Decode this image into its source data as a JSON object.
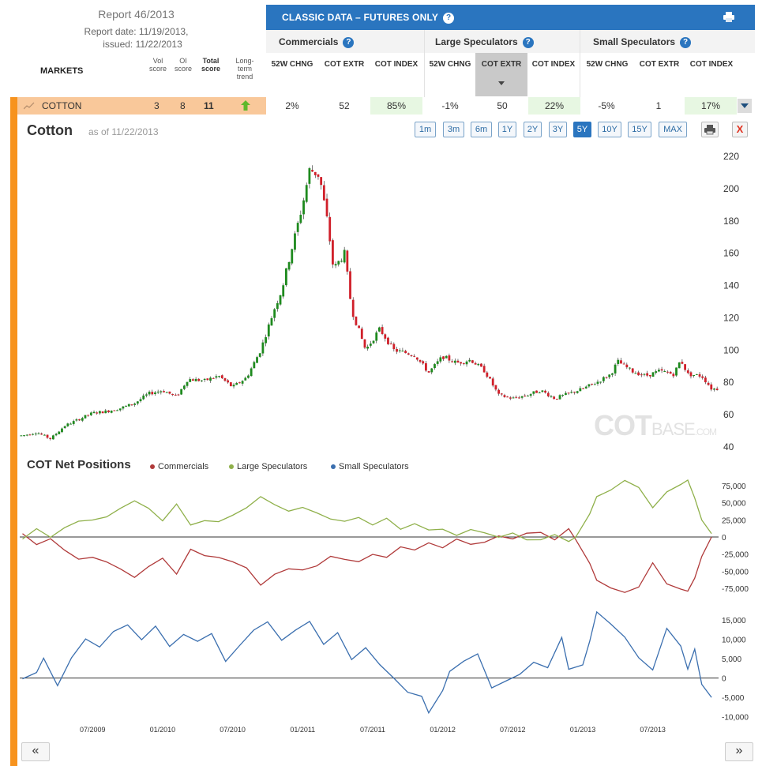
{
  "report": {
    "title": "Report 46/2013",
    "date_line": "Report date: 11/19/2013,",
    "issued_line": "issued: 11/22/2013"
  },
  "table": {
    "markets_label": "MARKETS",
    "vol_label": "Vol score",
    "oi_label": "OI score",
    "total_label": "Total score",
    "trend_label": "Long-term trend",
    "classic_title": "CLASSIC DATA – FUTURES ONLY",
    "groups": [
      "Commercials",
      "Large Speculators",
      "Small Speculators"
    ],
    "sub_headers": [
      "52W CHNG",
      "COT EXTR",
      "COT INDEX",
      "52W CHNG",
      "COT EXTR",
      "COT INDEX",
      "52W CHNG",
      "COT EXTR",
      "COT INDEX"
    ],
    "row": {
      "market": "COTTON",
      "vol": "3",
      "oi": "8",
      "total": "11",
      "values": [
        "2%",
        "52",
        "85%",
        "-1%",
        "50",
        "22%",
        "-5%",
        "1",
        "17%"
      ]
    }
  },
  "chart": {
    "title": "Cotton",
    "as_of": "as of 11/22/2013",
    "ranges": [
      "1m",
      "3m",
      "6m",
      "1Y",
      "2Y",
      "3Y",
      "5Y",
      "10Y",
      "15Y",
      "MAX"
    ],
    "active_range": "5Y",
    "close_label": "X",
    "watermark": {
      "a": "COT",
      "b": "BASE",
      "c": ".COM"
    },
    "cot_title": "COT Net Positions",
    "nav_prev": "«",
    "nav_next": "»"
  },
  "colors": {
    "up": "#1e8a1e",
    "down": "#d0202a",
    "commercials": "#b03a3a",
    "large": "#8fb04a",
    "small": "#3b6faf",
    "accent": "#2a75bf",
    "orange": "#f7931e"
  },
  "chart_data": [
    {
      "type": "candlestick",
      "title": "Cotton",
      "x_ticks": [
        "07/2009",
        "01/2010",
        "07/2010",
        "01/2011",
        "07/2011",
        "01/2012",
        "07/2012",
        "01/2013",
        "07/2013"
      ],
      "y_ticks": [
        40,
        60,
        80,
        100,
        120,
        140,
        160,
        180,
        200,
        220
      ],
      "ylim": [
        37,
        222
      ],
      "points": [
        [
          2009.0,
          47
        ],
        [
          2009.1,
          49
        ],
        [
          2009.2,
          45
        ],
        [
          2009.3,
          53
        ],
        [
          2009.4,
          57
        ],
        [
          2009.5,
          61
        ],
        [
          2009.6,
          62
        ],
        [
          2009.7,
          64
        ],
        [
          2009.8,
          67
        ],
        [
          2009.9,
          73
        ],
        [
          2010.0,
          75
        ],
        [
          2010.1,
          71
        ],
        [
          2010.18,
          82
        ],
        [
          2010.3,
          81
        ],
        [
          2010.4,
          84
        ],
        [
          2010.5,
          77
        ],
        [
          2010.6,
          83
        ],
        [
          2010.7,
          100
        ],
        [
          2010.8,
          126
        ],
        [
          2010.85,
          137
        ],
        [
          2010.9,
          155
        ],
        [
          2011.0,
          190
        ],
        [
          2011.05,
          212
        ],
        [
          2011.12,
          208
        ],
        [
          2011.18,
          178
        ],
        [
          2011.22,
          150
        ],
        [
          2011.3,
          160
        ],
        [
          2011.35,
          125
        ],
        [
          2011.45,
          100
        ],
        [
          2011.55,
          113
        ],
        [
          2011.65,
          100
        ],
        [
          2011.8,
          97
        ],
        [
          2011.9,
          86
        ],
        [
          2012.0,
          96
        ],
        [
          2012.1,
          92
        ],
        [
          2012.2,
          94
        ],
        [
          2012.3,
          87
        ],
        [
          2012.4,
          72
        ],
        [
          2012.5,
          70
        ],
        [
          2012.6,
          72
        ],
        [
          2012.7,
          75
        ],
        [
          2012.8,
          70
        ],
        [
          2012.9,
          73
        ],
        [
          2013.0,
          76
        ],
        [
          2013.1,
          80
        ],
        [
          2013.2,
          85
        ],
        [
          2013.25,
          93
        ],
        [
          2013.35,
          87
        ],
        [
          2013.45,
          84
        ],
        [
          2013.55,
          87
        ],
        [
          2013.65,
          85
        ],
        [
          2013.7,
          94
        ],
        [
          2013.75,
          85
        ],
        [
          2013.85,
          84
        ],
        [
          2013.92,
          76
        ]
      ]
    },
    {
      "type": "line",
      "title": "COT Net Positions",
      "y_ticks": [
        -75000,
        -50000,
        -25000,
        0,
        25000,
        50000,
        75000
      ],
      "ylim": [
        -90000,
        90000
      ],
      "series": [
        {
          "name": "Commercials",
          "values": [
            [
              2009.0,
              5000
            ],
            [
              2009.1,
              -12000
            ],
            [
              2009.2,
              -5000
            ],
            [
              2009.3,
              -18000
            ],
            [
              2009.4,
              -30000
            ],
            [
              2009.5,
              -28000
            ],
            [
              2009.6,
              -38000
            ],
            [
              2009.7,
              -45000
            ],
            [
              2009.8,
              -58000
            ],
            [
              2009.9,
              -45000
            ],
            [
              2010.0,
              -30000
            ],
            [
              2010.1,
              -55000
            ],
            [
              2010.2,
              -20000
            ],
            [
              2010.3,
              -30000
            ],
            [
              2010.4,
              -30000
            ],
            [
              2010.5,
              -35000
            ],
            [
              2010.6,
              -45000
            ],
            [
              2010.7,
              -70000
            ],
            [
              2010.8,
              -55000
            ],
            [
              2010.9,
              -45000
            ],
            [
              2011.0,
              -50000
            ],
            [
              2011.1,
              -40000
            ],
            [
              2011.2,
              -30000
            ],
            [
              2011.3,
              -30000
            ],
            [
              2011.4,
              -35000
            ],
            [
              2011.5,
              -25000
            ],
            [
              2011.6,
              -30000
            ],
            [
              2011.7,
              -15000
            ],
            [
              2011.8,
              -20000
            ],
            [
              2011.9,
              -10000
            ],
            [
              2012.0,
              -15000
            ],
            [
              2012.1,
              -5000
            ],
            [
              2012.2,
              -8000
            ],
            [
              2012.3,
              -5000
            ],
            [
              2012.4,
              2000
            ],
            [
              2012.5,
              -5000
            ],
            [
              2012.6,
              8000
            ],
            [
              2012.7,
              5000
            ],
            [
              2012.8,
              -5000
            ],
            [
              2012.9,
              10000
            ],
            [
              2012.95,
              -3000
            ],
            [
              2013.05,
              -40000
            ],
            [
              2013.1,
              -65000
            ],
            [
              2013.2,
              -75000
            ],
            [
              2013.3,
              -82000
            ],
            [
              2013.4,
              -72000
            ],
            [
              2013.5,
              -40000
            ],
            [
              2013.6,
              -70000
            ],
            [
              2013.7,
              -78000
            ],
            [
              2013.75,
              -80000
            ],
            [
              2013.8,
              -60000
            ],
            [
              2013.85,
              -30000
            ],
            [
              2013.92,
              0
            ]
          ]
        },
        {
          "name": "Large Speculators",
          "values": [
            [
              2009.0,
              -3000
            ],
            [
              2009.1,
              10000
            ],
            [
              2009.2,
              2000
            ],
            [
              2009.3,
              15000
            ],
            [
              2009.4,
              25000
            ],
            [
              2009.5,
              22000
            ],
            [
              2009.6,
              32000
            ],
            [
              2009.7,
              40000
            ],
            [
              2009.8,
              52000
            ],
            [
              2009.9,
              40000
            ],
            [
              2010.0,
              25000
            ],
            [
              2010.1,
              48000
            ],
            [
              2010.2,
              15000
            ],
            [
              2010.3,
              22000
            ],
            [
              2010.4,
              25000
            ],
            [
              2010.5,
              30000
            ],
            [
              2010.6,
              40000
            ],
            [
              2010.7,
              58000
            ],
            [
              2010.8,
              45000
            ],
            [
              2010.9,
              40000
            ],
            [
              2011.0,
              42000
            ],
            [
              2011.1,
              35000
            ],
            [
              2011.2,
              25000
            ],
            [
              2011.3,
              22000
            ],
            [
              2011.4,
              30000
            ],
            [
              2011.5,
              20000
            ],
            [
              2011.6,
              25000
            ],
            [
              2011.7,
              12000
            ],
            [
              2011.8,
              18000
            ],
            [
              2011.9,
              8000
            ],
            [
              2012.0,
              12000
            ],
            [
              2012.1,
              5000
            ],
            [
              2012.2,
              8000
            ],
            [
              2012.3,
              5000
            ],
            [
              2012.4,
              0
            ],
            [
              2012.5,
              5000
            ],
            [
              2012.6,
              -5000
            ],
            [
              2012.7,
              -3000
            ],
            [
              2012.8,
              5000
            ],
            [
              2012.9,
              -8000
            ],
            [
              2012.95,
              2000
            ],
            [
              2013.05,
              35000
            ],
            [
              2013.1,
              60000
            ],
            [
              2013.2,
              70000
            ],
            [
              2013.3,
              85000
            ],
            [
              2013.4,
              70000
            ],
            [
              2013.5,
              45000
            ],
            [
              2013.6,
              68000
            ],
            [
              2013.7,
              75000
            ],
            [
              2013.75,
              85000
            ],
            [
              2013.8,
              55000
            ],
            [
              2013.85,
              25000
            ],
            [
              2013.92,
              5000
            ]
          ]
        }
      ]
    },
    {
      "type": "line",
      "y_ticks": [
        -10000,
        -5000,
        0,
        5000,
        10000,
        15000
      ],
      "ylim": [
        -10500,
        17500
      ],
      "series": [
        {
          "name": "Small Speculators",
          "values": [
            [
              2009.0,
              -200
            ],
            [
              2009.1,
              2000
            ],
            [
              2009.15,
              4500
            ],
            [
              2009.25,
              -2500
            ],
            [
              2009.35,
              5000
            ],
            [
              2009.45,
              10000
            ],
            [
              2009.55,
              8000
            ],
            [
              2009.65,
              12000
            ],
            [
              2009.75,
              13500
            ],
            [
              2009.85,
              10000
            ],
            [
              2009.95,
              14000
            ],
            [
              2010.05,
              8000
            ],
            [
              2010.15,
              12000
            ],
            [
              2010.25,
              9000
            ],
            [
              2010.35,
              11000
            ],
            [
              2010.45,
              4000
            ],
            [
              2010.55,
              9000
            ],
            [
              2010.65,
              12000
            ],
            [
              2010.75,
              14000
            ],
            [
              2010.85,
              10000
            ],
            [
              2010.95,
              12000
            ],
            [
              2011.05,
              14000
            ],
            [
              2011.15,
              8000
            ],
            [
              2011.25,
              12000
            ],
            [
              2011.35,
              5000
            ],
            [
              2011.45,
              8000
            ],
            [
              2011.55,
              3000
            ],
            [
              2011.65,
              0
            ],
            [
              2011.75,
              -3000
            ],
            [
              2011.85,
              -5000
            ],
            [
              2011.9,
              -9500
            ],
            [
              2012.0,
              -3000
            ],
            [
              2012.05,
              2000
            ],
            [
              2012.15,
              4000
            ],
            [
              2012.25,
              6000
            ],
            [
              2012.35,
              -2000
            ],
            [
              2012.45,
              -1000
            ],
            [
              2012.55,
              1000
            ],
            [
              2012.65,
              4000
            ],
            [
              2012.75,
              2000
            ],
            [
              2012.85,
              11000
            ],
            [
              2012.9,
              3000
            ],
            [
              2013.0,
              4000
            ],
            [
              2013.05,
              10000
            ],
            [
              2013.1,
              16500
            ],
            [
              2013.2,
              14000
            ],
            [
              2013.3,
              10000
            ],
            [
              2013.4,
              5000
            ],
            [
              2013.5,
              2000
            ],
            [
              2013.6,
              12500
            ],
            [
              2013.7,
              8000
            ],
            [
              2013.75,
              2000
            ],
            [
              2013.8,
              8000
            ],
            [
              2013.85,
              -1500
            ],
            [
              2013.92,
              -5000
            ]
          ]
        }
      ]
    }
  ]
}
